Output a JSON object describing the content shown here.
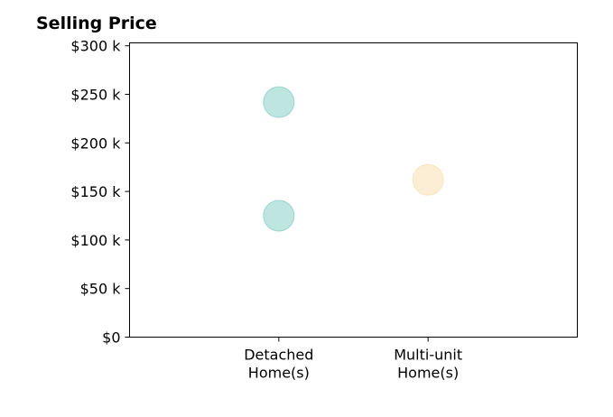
{
  "chart_data": {
    "type": "scatter",
    "title": "Selling Price",
    "xlabel": "",
    "ylabel": "",
    "categories": [
      [
        "Detached",
        "Home(s)"
      ],
      [
        "Multi-unit",
        "Home(s)"
      ]
    ],
    "x_range": [
      -1,
      2
    ],
    "ylim": [
      0,
      303000
    ],
    "y_ticks": [
      0,
      50000,
      100000,
      150000,
      200000,
      250000,
      300000
    ],
    "y_tick_labels": [
      "$0",
      "$50 k",
      "$100 k",
      "$150 k",
      "$200 k",
      "$250 k",
      "$300 k"
    ],
    "grid": false,
    "points": [
      {
        "category": 0,
        "value": 242000,
        "color": "#80cbc4"
      },
      {
        "category": 0,
        "value": 125000,
        "color": "#80cbc4"
      },
      {
        "category": 1,
        "value": 162000,
        "color": "#f8deaa"
      }
    ]
  }
}
